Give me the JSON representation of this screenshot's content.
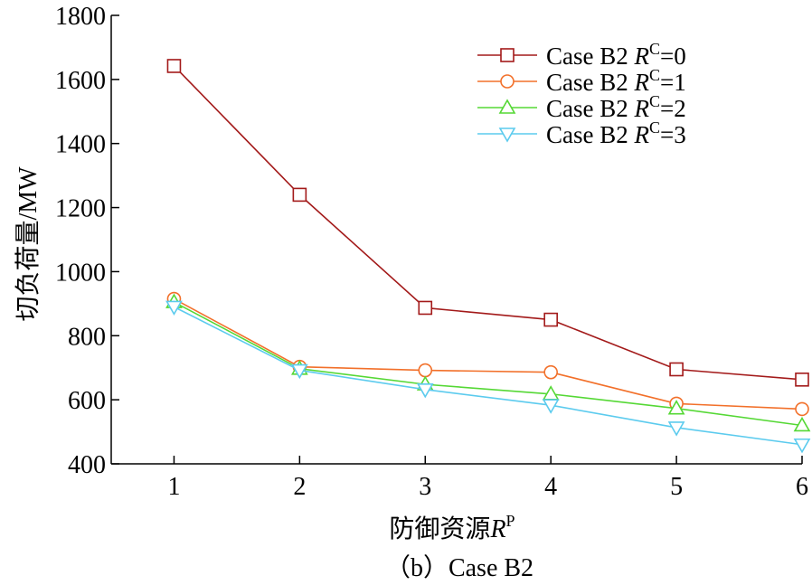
{
  "chart_data": {
    "type": "line",
    "caption": "（b）Case B2",
    "xlabel": {
      "text": "防御资源",
      "var": "R",
      "sup": "P"
    },
    "ylabel": "切负荷量/MW",
    "x": [
      1,
      2,
      3,
      4,
      5,
      6
    ],
    "xlim": [
      0.5,
      6
    ],
    "ylim": [
      400,
      1800
    ],
    "xticks": [
      1,
      2,
      3,
      4,
      5,
      6
    ],
    "yticks": [
      400,
      600,
      800,
      1000,
      1200,
      1400,
      1600,
      1800
    ],
    "grid": false,
    "legend_position": "top-right",
    "series": [
      {
        "name": "Case B2 RC=0",
        "legend_prefix": "Case B2 ",
        "legend_var": "R",
        "legend_sup": "C",
        "legend_suffix": "=0",
        "marker": "square",
        "color": "#a31a1a",
        "values": [
          1642,
          1240,
          887,
          850,
          695,
          663
        ]
      },
      {
        "name": "Case B2 RC=1",
        "legend_prefix": "Case B2 ",
        "legend_var": "R",
        "legend_sup": "C",
        "legend_suffix": "=1",
        "marker": "circle",
        "color": "#f2702a",
        "values": [
          915,
          703,
          692,
          686,
          588,
          571
        ]
      },
      {
        "name": "Case B2 RC=2",
        "legend_prefix": "Case B2 ",
        "legend_var": "R",
        "legend_sup": "C",
        "legend_suffix": "=2",
        "marker": "triangle-up",
        "color": "#55d835",
        "values": [
          905,
          697,
          648,
          618,
          573,
          520
        ]
      },
      {
        "name": "Case B2 RC=3",
        "legend_prefix": "Case B2 ",
        "legend_var": "R",
        "legend_sup": "C",
        "legend_suffix": "=3",
        "marker": "triangle-down",
        "color": "#5ccbee",
        "values": [
          890,
          692,
          632,
          583,
          513,
          460
        ]
      }
    ]
  }
}
